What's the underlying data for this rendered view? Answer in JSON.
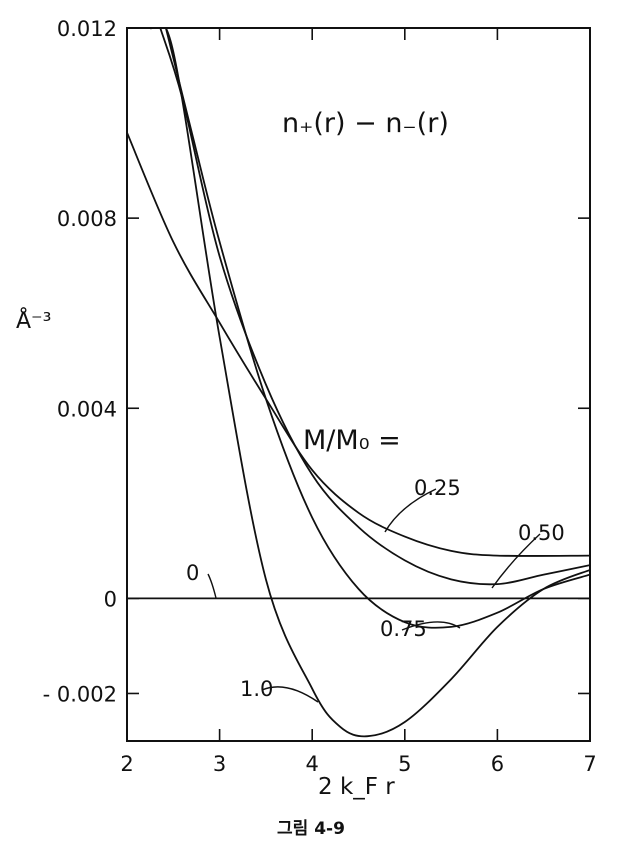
{
  "chart_data": {
    "type": "line",
    "title": "n₊(r) − n₋(r)",
    "xlabel": "2 k_F r",
    "ylabel": "Å⁻³",
    "xlim": [
      2,
      7
    ],
    "ylim": [
      -0.003,
      0.012
    ],
    "x_ticks": [
      2,
      3,
      4,
      5,
      6,
      7
    ],
    "x_tick_labels": [
      "2",
      "3",
      "4",
      "5",
      "6",
      "7"
    ],
    "y_ticks": [
      0.012,
      0.008,
      0.004,
      0,
      -0.002
    ],
    "y_tick_labels": [
      "0.012",
      "0.008",
      "0.004",
      "0",
      "- 0.002"
    ],
    "legend_title": "M/M₀ =",
    "grid": false,
    "series": [
      {
        "name": "0",
        "x": [
          2,
          7
        ],
        "y": [
          0,
          0
        ]
      },
      {
        "name": "0.25",
        "x": [
          2,
          2.5,
          3,
          3.5,
          4,
          4.5,
          5,
          5.5,
          6,
          7
        ],
        "y": [
          0.0098,
          0.0075,
          0.0058,
          0.0042,
          0.0027,
          0.0018,
          0.0013,
          0.001,
          0.0009,
          0.0009
        ]
      },
      {
        "name": "0.50",
        "x": [
          2.36,
          2.6,
          3,
          3.5,
          4,
          4.5,
          5,
          5.5,
          6,
          6.5,
          7
        ],
        "y": [
          0.012,
          0.0105,
          0.0072,
          0.0045,
          0.0026,
          0.0015,
          0.0008,
          0.0004,
          0.0003,
          0.0005,
          0.0007
        ]
      },
      {
        "name": "0.75",
        "x": [
          2.42,
          2.7,
          3,
          3.5,
          4,
          4.5,
          5,
          5.5,
          6,
          6.5,
          7
        ],
        "y": [
          0.012,
          0.0098,
          0.0075,
          0.0042,
          0.0017,
          0.0002,
          -0.0005,
          -0.0006,
          -0.0003,
          0.0002,
          0.0005
        ]
      },
      {
        "name": "1.0",
        "x": [
          2.25,
          2.5,
          3,
          3.5,
          4,
          4.3,
          4.6,
          5,
          5.5,
          6,
          6.5,
          7
        ],
        "y": [
          0.012,
          0.0115,
          0.0055,
          0.0004,
          -0.0019,
          -0.0027,
          -0.0029,
          -0.0026,
          -0.0017,
          -0.0006,
          0.0002,
          0.0006
        ]
      }
    ],
    "caption": "그림 4-9"
  }
}
